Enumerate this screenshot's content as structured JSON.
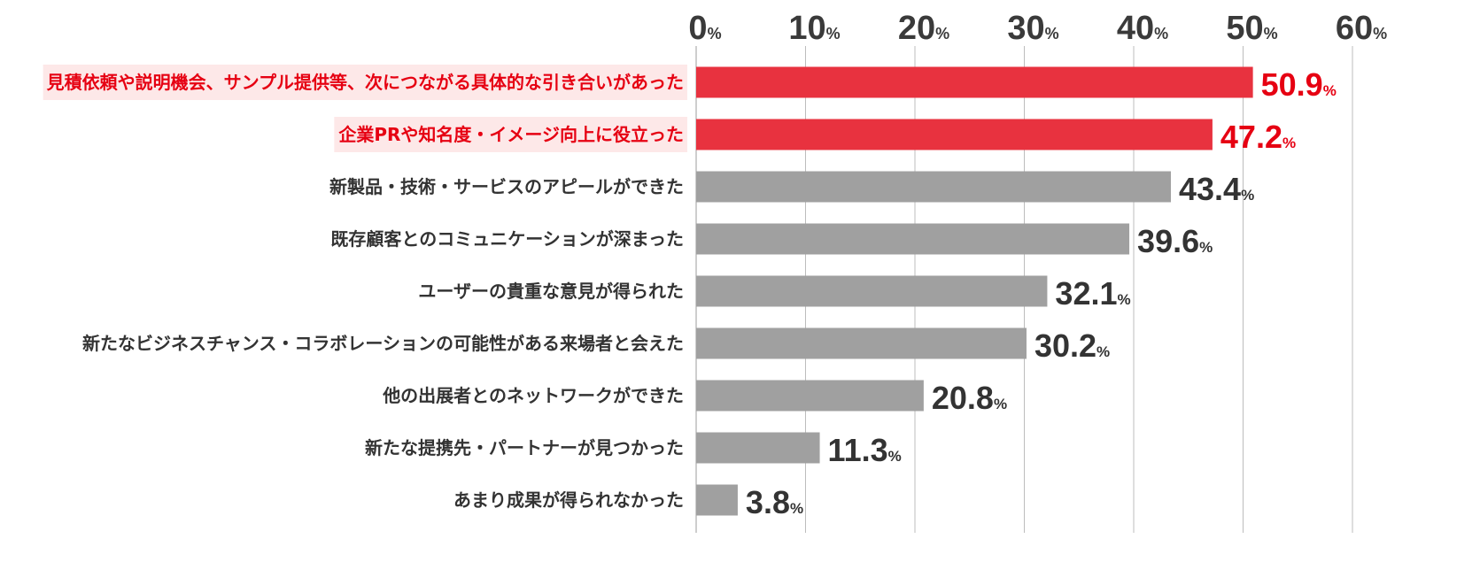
{
  "chart_data": {
    "type": "bar",
    "orientation": "horizontal",
    "categories": [
      "見積依頼や説明機会、サンプル提供等、次につながる具体的な引き合いがあった",
      "企業PRや知名度・イメージ向上に役立った",
      "新製品・技術・サービスのアピールができた",
      "既存顧客とのコミュニケーションが深まった",
      "ユーザーの貴重な意見が得られた",
      "新たなビジネスチャンス・コラボレーションの可能性がある来場者と会えた",
      "他の出展者とのネットワークができた",
      "新たな提携先・パートナーが見つかった",
      "あまり成果が得られなかった"
    ],
    "values": [
      50.9,
      47.2,
      43.4,
      39.6,
      32.1,
      30.2,
      20.8,
      11.3,
      3.8
    ],
    "value_labels": [
      "50.9",
      "47.2",
      "43.4",
      "39.6",
      "32.1",
      "30.2",
      "20.8",
      "11.3",
      "3.8"
    ],
    "highlighted": [
      true,
      true,
      false,
      false,
      false,
      false,
      false,
      false,
      false
    ],
    "xlim": [
      0,
      60
    ],
    "xticks": [
      0,
      10,
      20,
      30,
      40,
      50,
      60
    ],
    "tick_number_labels": [
      "0",
      "10",
      "20",
      "30",
      "40",
      "50",
      "60"
    ],
    "unit": "%",
    "title": "",
    "xlabel": "",
    "ylabel": "",
    "axis_position": "top",
    "grid": true,
    "colors": {
      "highlight_bar": "#e8323f",
      "highlight_text": "#e60012",
      "highlight_label_bg": "#fde8e8",
      "normal_bar": "#a0a0a0",
      "normal_text": "#333333",
      "grid": "#bdbdbd"
    }
  }
}
